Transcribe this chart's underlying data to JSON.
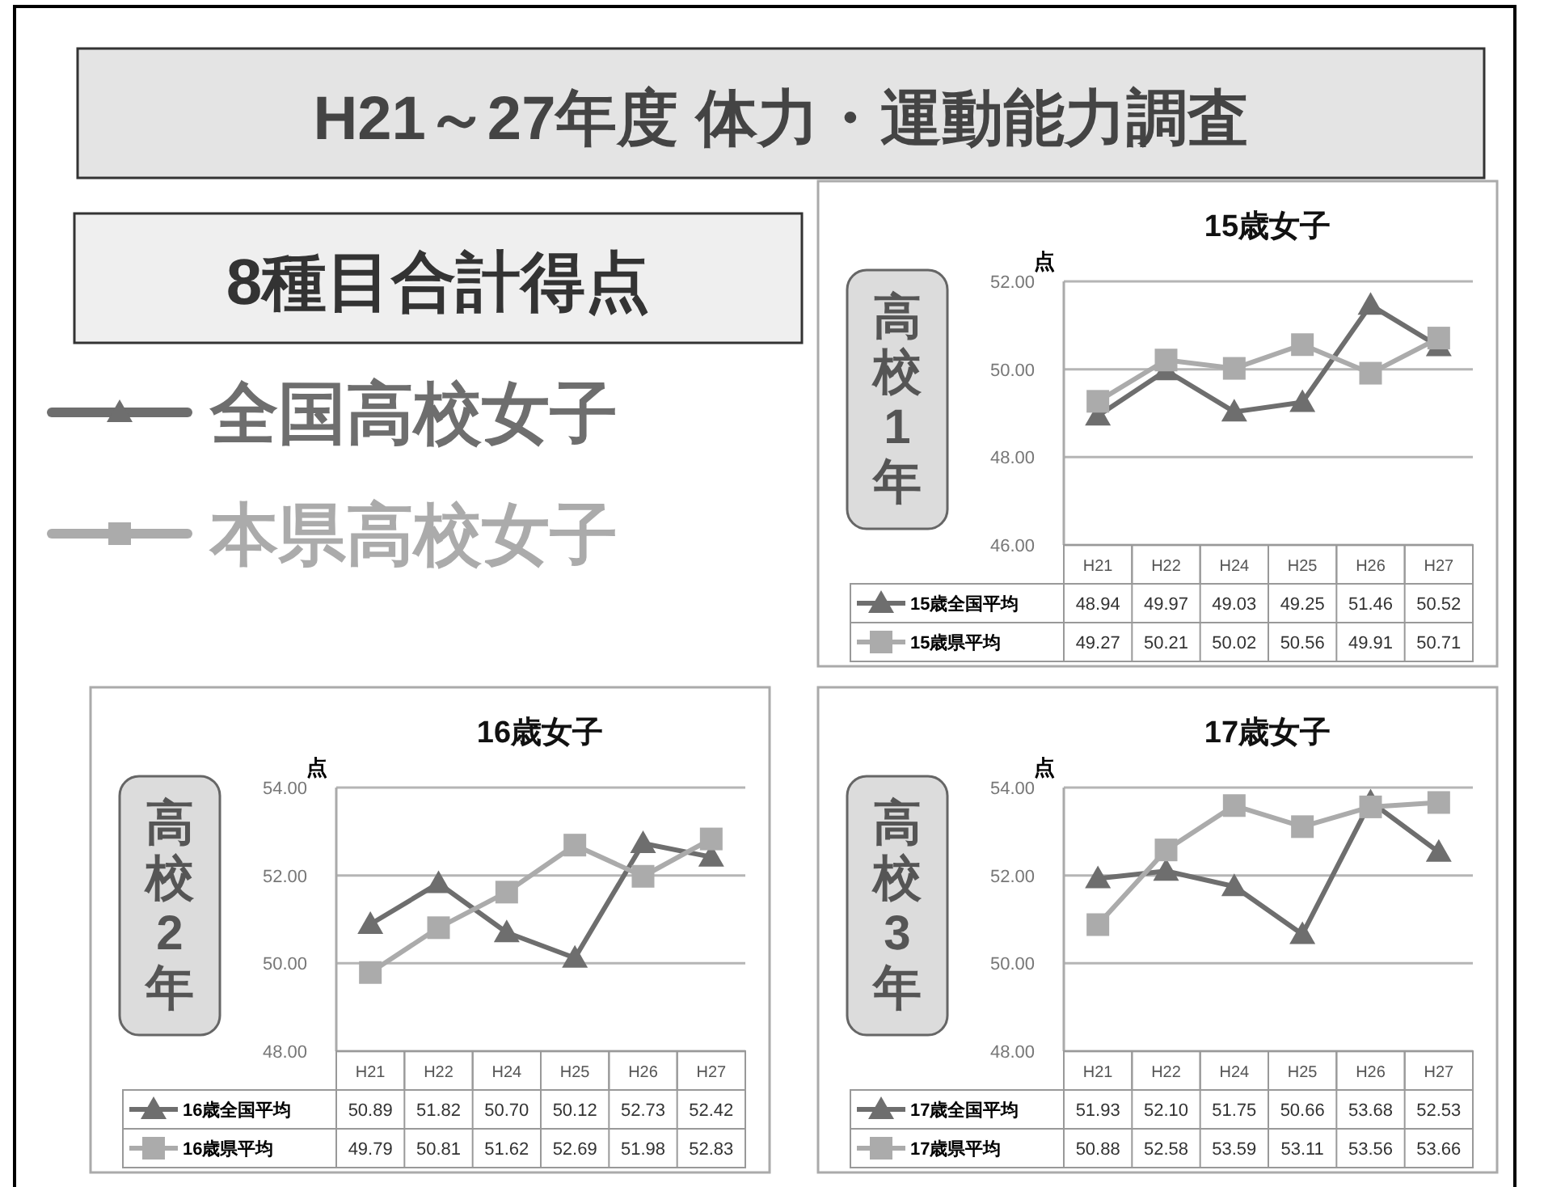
{
  "chart_data": [
    {
      "type": "other",
      "title": "H21～27年度 体力・運動能力調査",
      "subtitle": "8種目合計得点",
      "annotations": [
        "全国高校女子",
        "本県高校女子"
      ]
    },
    {
      "type": "line",
      "title": "15歳女子",
      "ylabel": "点",
      "annotations": [
        "高校1年"
      ],
      "categories": [
        "H21",
        "H22",
        "H24",
        "H25",
        "H26",
        "H27"
      ],
      "series": [
        {
          "name": "15歳全国平均",
          "color": "#6e6e6e",
          "marker": "triangle",
          "values": [
            48.94,
            49.97,
            49.03,
            49.25,
            51.46,
            50.52
          ],
          "value_labels": [
            "48.94",
            "49.97",
            "49.03",
            "49.25",
            "51.46",
            "50.52"
          ]
        },
        {
          "name": "15歳県平均",
          "color": "#ababab",
          "marker": "square",
          "values": [
            49.27,
            50.21,
            50.02,
            50.56,
            49.91,
            50.71
          ],
          "value_labels": [
            "49.27",
            "50.21",
            "50.02",
            "50.56",
            "49.91",
            "50.71"
          ]
        }
      ],
      "ylim": [
        46,
        52
      ],
      "yticks": [
        {
          "value": 46,
          "label": "46.00"
        },
        {
          "value": 48,
          "label": "48.00"
        },
        {
          "value": 50,
          "label": "50.00"
        },
        {
          "value": 52,
          "label": "52.00"
        }
      ],
      "grid": "y",
      "legend": "bottom"
    },
    {
      "type": "line",
      "title": "16歳女子",
      "ylabel": "点",
      "annotations": [
        "高校2年"
      ],
      "categories": [
        "H21",
        "H22",
        "H24",
        "H25",
        "H26",
        "H27"
      ],
      "series": [
        {
          "name": "16歳全国平均",
          "color": "#6e6e6e",
          "marker": "triangle",
          "values": [
            50.89,
            51.82,
            50.7,
            50.12,
            52.73,
            52.42
          ],
          "value_labels": [
            "50.89",
            "51.82",
            "50.70",
            "50.12",
            "52.73",
            "52.42"
          ]
        },
        {
          "name": "16歳県平均",
          "color": "#ababab",
          "marker": "square",
          "values": [
            49.79,
            50.81,
            51.62,
            52.69,
            51.98,
            52.83
          ],
          "value_labels": [
            "49.79",
            "50.81",
            "51.62",
            "52.69",
            "51.98",
            "52.83"
          ]
        }
      ],
      "ylim": [
        48,
        54
      ],
      "yticks": [
        {
          "value": 48,
          "label": "48.00"
        },
        {
          "value": 50,
          "label": "50.00"
        },
        {
          "value": 52,
          "label": "52.00"
        },
        {
          "value": 54,
          "label": "54.00"
        }
      ],
      "grid": "y",
      "legend": "bottom"
    },
    {
      "type": "line",
      "title": "17歳女子",
      "ylabel": "点",
      "annotations": [
        "高校3年"
      ],
      "categories": [
        "H21",
        "H22",
        "H24",
        "H25",
        "H26",
        "H27"
      ],
      "series": [
        {
          "name": "17歳全国平均",
          "color": "#6e6e6e",
          "marker": "triangle",
          "values": [
            51.93,
            52.1,
            51.75,
            50.66,
            53.68,
            52.53
          ],
          "value_labels": [
            "51.93",
            "52.10",
            "51.75",
            "50.66",
            "53.68",
            "52.53"
          ]
        },
        {
          "name": "17歳県平均",
          "color": "#ababab",
          "marker": "square",
          "values": [
            50.88,
            52.58,
            53.59,
            53.11,
            53.56,
            53.66
          ],
          "value_labels": [
            "50.88",
            "52.58",
            "53.59",
            "53.11",
            "53.56",
            "53.66"
          ]
        }
      ],
      "ylim": [
        48,
        54
      ],
      "yticks": [
        {
          "value": 48,
          "label": "48.00"
        },
        {
          "value": 50,
          "label": "50.00"
        },
        {
          "value": 52,
          "label": "52.00"
        },
        {
          "value": 54,
          "label": "54.00"
        }
      ],
      "grid": "y",
      "legend": "bottom"
    }
  ]
}
